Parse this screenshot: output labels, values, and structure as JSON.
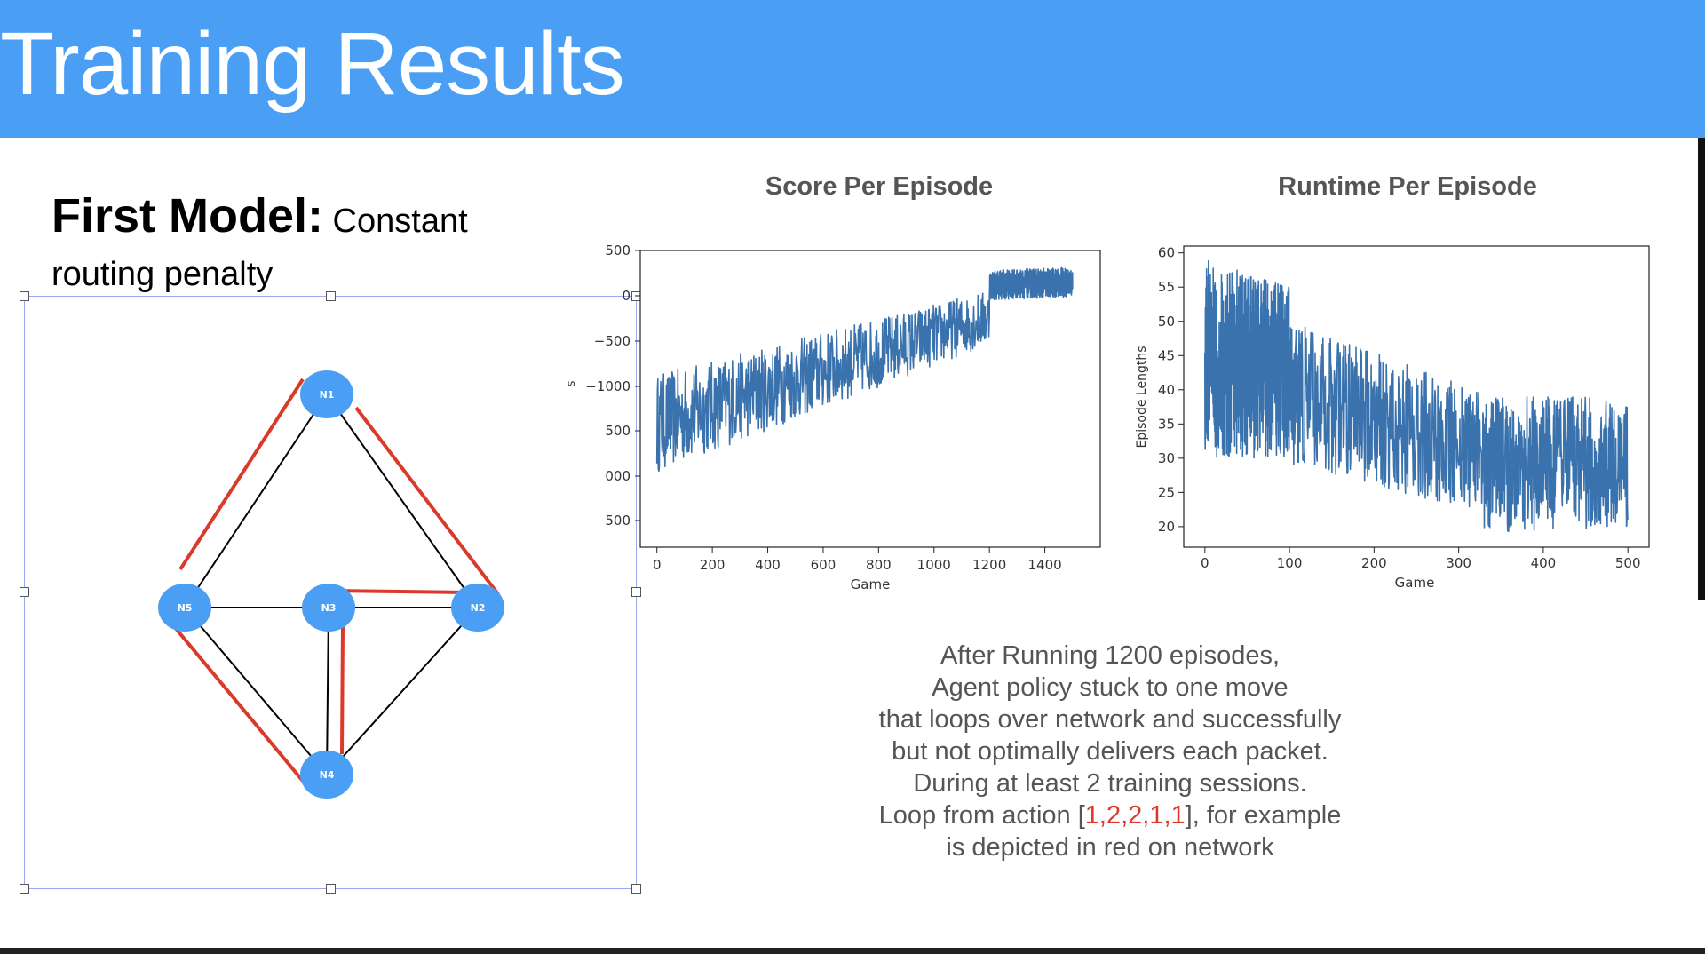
{
  "header": {
    "title": "Training Results"
  },
  "model": {
    "heading_bold": "First Model:",
    "heading_rest": " Constant",
    "heading_line2": "routing penalty"
  },
  "network": {
    "nodes": [
      {
        "id": "N1",
        "label": "N1"
      },
      {
        "id": "N2",
        "label": "N2"
      },
      {
        "id": "N3",
        "label": "N3"
      },
      {
        "id": "N4",
        "label": "N4"
      },
      {
        "id": "N5",
        "label": "N5"
      }
    ],
    "edges": [
      [
        "N1",
        "N5"
      ],
      [
        "N1",
        "N2"
      ],
      [
        "N5",
        "N3"
      ],
      [
        "N3",
        "N2"
      ],
      [
        "N3",
        "N4"
      ],
      [
        "N5",
        "N4"
      ],
      [
        "N2",
        "N4"
      ]
    ],
    "loop_edges": [
      [
        "N1",
        "N5"
      ],
      [
        "N1",
        "N2"
      ],
      [
        "N3",
        "N2"
      ],
      [
        "N3",
        "N4"
      ],
      [
        "N5",
        "N4"
      ]
    ],
    "node_color": "#4a9ff5",
    "loop_color": "#d93a2a"
  },
  "charts": {
    "score": {
      "title": "Score Per Episode",
      "xlabel": "Game",
      "ylabel": "s",
      "x_ticks": [
        "0",
        "200",
        "400",
        "600",
        "800",
        "1000",
        "1200",
        "1400"
      ],
      "y_ticks": [
        "500",
        "0",
        "−500",
        "−1000",
        "500",
        "000",
        "500"
      ]
    },
    "runtime": {
      "title": "Runtime Per Episode",
      "xlabel": "Game",
      "ylabel": "Episode Lengths",
      "x_ticks": [
        "0",
        "100",
        "200",
        "300",
        "400",
        "500"
      ],
      "y_ticks": [
        "60",
        "55",
        "50",
        "45",
        "40",
        "35",
        "30",
        "25",
        "20"
      ]
    }
  },
  "chart_data": [
    {
      "type": "line",
      "title": "Score Per Episode",
      "xlabel": "Game",
      "ylabel": "s",
      "xlim": [
        -60,
        1600
      ],
      "ylim": [
        -2450,
        550
      ],
      "series": [
        {
          "color": "#3a72ad",
          "segments": [
            {
              "x_from": 0,
              "x_to": 1200,
              "y_low_start": -1700,
              "y_low_end": -400,
              "y_high_start": -700,
              "y_high_end": 150
            },
            {
              "x_from": 1200,
              "x_to": 1500,
              "y_low_start": 50,
              "y_low_end": 80,
              "y_high_start": 350,
              "y_high_end": 380
            }
          ]
        }
      ]
    },
    {
      "type": "line",
      "title": "Runtime Per Episode",
      "xlabel": "Game",
      "ylabel": "Episode Lengths",
      "xlim": [
        -25,
        525
      ],
      "ylim": [
        17,
        61
      ],
      "series": [
        {
          "color": "#3a72ad",
          "segments": [
            {
              "x_from": 0,
              "x_to": 100,
              "y_low_start": 30,
              "y_low_end": 30,
              "y_high_start": 59,
              "y_high_end": 55
            },
            {
              "x_from": 100,
              "x_to": 330,
              "y_low_start": 29,
              "y_low_end": 22,
              "y_high_start": 50,
              "y_high_end": 40
            },
            {
              "x_from": 330,
              "x_to": 500,
              "y_low_start": 19,
              "y_low_end": 20,
              "y_high_start": 39,
              "y_high_end": 39
            }
          ]
        }
      ]
    }
  ],
  "caption": {
    "line1": "After Running 1200 episodes,",
    "line2": "Agent policy stuck to one move",
    "line3": "that loops over network and successfully",
    "line4": "but not optimally delivers each packet.",
    "line5": "During at least 2 training sessions.",
    "line6_pre": "Loop from action [",
    "line6_red": "1,2,2,1,1",
    "line6_post": "], for example",
    "line7": "is depicted in red on network"
  }
}
